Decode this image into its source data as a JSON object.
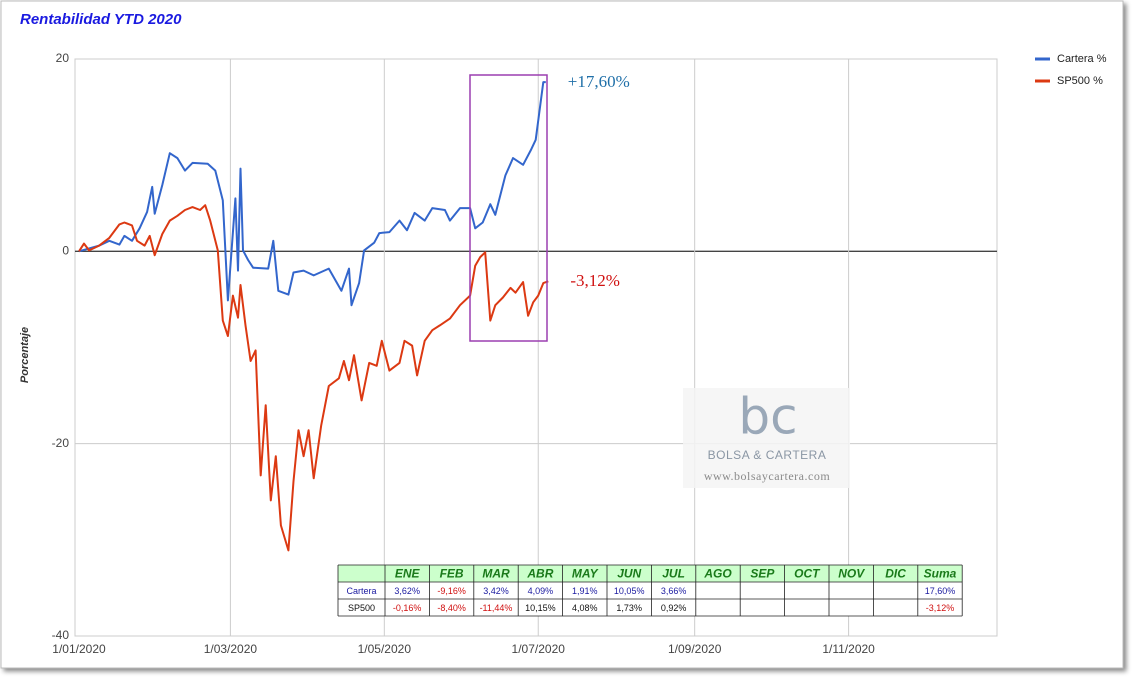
{
  "chart_data": {
    "type": "line",
    "title": "Rentabilidad YTD 2020",
    "ylabel": "Porcentaje",
    "xlim": [
      "1/01/2020",
      "31/12/2020"
    ],
    "xticks": [
      "1/01/2020",
      "1/03/2020",
      "1/05/2020",
      "1/07/2020",
      "1/09/2020",
      "1/11/2020"
    ],
    "ylim": [
      -40,
      20
    ],
    "yticks": [
      -40,
      -20,
      0,
      20
    ],
    "grid": true,
    "legend": "right",
    "series": [
      {
        "name": "Cartera %",
        "color": "#3366cc",
        "x": [
          "1/01/2020",
          "5/01/2020",
          "9/01/2020",
          "13/01/2020",
          "17/01/2020",
          "19/01/2020",
          "22/01/2020",
          "25/01/2020",
          "28/01/2020",
          "30/01/2020",
          "31/01/2020",
          "3/02/2020",
          "6/02/2020",
          "9/02/2020",
          "12/02/2020",
          "15/02/2020",
          "21/02/2020",
          "24/02/2020",
          "27/02/2020",
          "29/02/2020",
          "3/03/2020",
          "4/03/2020",
          "5/03/2020",
          "6/03/2020",
          "8/03/2020",
          "10/03/2020",
          "16/03/2020",
          "18/03/2020",
          "20/03/2020",
          "24/03/2020",
          "26/03/2020",
          "30/03/2020",
          "3/04/2020",
          "9/04/2020",
          "14/04/2020",
          "17/04/2020",
          "18/04/2020",
          "21/04/2020",
          "23/04/2020",
          "27/04/2020",
          "29/04/2020",
          "3/05/2020",
          "7/05/2020",
          "10/05/2020",
          "13/05/2020",
          "17/05/2020",
          "20/05/2020",
          "25/05/2020",
          "27/05/2020",
          "31/05/2020",
          "4/06/2020",
          "6/06/2020",
          "9/06/2020",
          "12/06/2020",
          "14/06/2020",
          "18/06/2020",
          "21/06/2020",
          "25/06/2020",
          "28/06/2020",
          "30/06/2020",
          "3/07/2020",
          "4/07/2020"
        ],
        "values": [
          0,
          0.3,
          0.6,
          1.1,
          0.7,
          1.6,
          1.1,
          2.4,
          4.1,
          6.7,
          3.9,
          6.9,
          10.2,
          9.7,
          8.4,
          9.2,
          9.1,
          8.4,
          5.3,
          -5.1,
          5.5,
          -2.0,
          8.6,
          0.1,
          -0.9,
          -1.7,
          -1.8,
          1.1,
          -4.1,
          -4.5,
          -2.2,
          -2.0,
          -2.5,
          -1.8,
          -4.1,
          -1.8,
          -5.6,
          -3.3,
          0.1,
          0.9,
          1.9,
          2.0,
          3.2,
          2.2,
          4.0,
          3.2,
          4.5,
          4.3,
          3.2,
          4.5,
          4.5,
          2.4,
          3.0,
          4.9,
          3.8,
          7.9,
          9.7,
          9.0,
          10.5,
          11.6,
          17.6,
          17.6
        ]
      },
      {
        "name": "SP500 %",
        "color": "#dc3912",
        "x": [
          "1/01/2020",
          "3/01/2020",
          "5/01/2020",
          "9/01/2020",
          "13/01/2020",
          "17/01/2020",
          "19/01/2020",
          "22/01/2020",
          "24/01/2020",
          "27/01/2020",
          "29/01/2020",
          "31/01/2020",
          "3/02/2020",
          "6/02/2020",
          "9/02/2020",
          "12/02/2020",
          "15/02/2020",
          "18/02/2020",
          "20/02/2020",
          "22/02/2020",
          "25/02/2020",
          "27/02/2020",
          "29/02/2020",
          "2/03/2020",
          "4/03/2020",
          "5/03/2020",
          "7/03/2020",
          "9/03/2020",
          "11/03/2020",
          "13/03/2020",
          "15/03/2020",
          "17/03/2020",
          "19/03/2020",
          "21/03/2020",
          "24/03/2020",
          "26/03/2020",
          "28/03/2020",
          "30/03/2020",
          "1/04/2020",
          "3/04/2020",
          "6/04/2020",
          "9/04/2020",
          "13/04/2020",
          "15/04/2020",
          "17/04/2020",
          "19/04/2020",
          "22/04/2020",
          "25/04/2020",
          "28/04/2020",
          "30/04/2020",
          "3/05/2020",
          "7/05/2020",
          "9/05/2020",
          "12/05/2020",
          "14/05/2020",
          "17/05/2020",
          "20/05/2020",
          "23/05/2020",
          "27/05/2020",
          "31/05/2020",
          "4/06/2020",
          "6/06/2020",
          "8/06/2020",
          "10/06/2020",
          "12/06/2020",
          "14/06/2020",
          "17/06/2020",
          "20/06/2020",
          "22/06/2020",
          "25/06/2020",
          "27/06/2020",
          "29/06/2020",
          "1/07/2020",
          "3/07/2020",
          "5/07/2020"
        ],
        "values": [
          0,
          0.8,
          0.1,
          0.6,
          1.4,
          2.8,
          3.0,
          2.7,
          1.1,
          0.6,
          1.6,
          -0.4,
          1.8,
          3.2,
          3.7,
          4.3,
          4.6,
          4.3,
          4.8,
          3.2,
          0.1,
          -7.2,
          -8.8,
          -4.6,
          -6.9,
          -3.5,
          -7.7,
          -11.4,
          -10.3,
          -23.3,
          -16.0,
          -25.9,
          -21.3,
          -28.5,
          -31.1,
          -23.9,
          -18.6,
          -21.3,
          -18.6,
          -23.6,
          -18.1,
          -14.0,
          -13.2,
          -11.4,
          -13.4,
          -10.8,
          -15.5,
          -11.6,
          -11.9,
          -9.3,
          -12.4,
          -11.6,
          -9.3,
          -9.8,
          -12.9,
          -9.3,
          -8.2,
          -7.7,
          -7.0,
          -5.6,
          -4.6,
          -1.5,
          -0.6,
          -0.1,
          -7.2,
          -5.6,
          -4.8,
          -3.8,
          -4.3,
          -3.2,
          -6.7,
          -5.3,
          -4.6,
          -3.3,
          -3.12
        ]
      }
    ],
    "annotations": [
      {
        "text": "+17,60%",
        "color": "#1f6fa8"
      },
      {
        "text": "-3,12%",
        "color": "#d01010"
      }
    ]
  },
  "table": {
    "columns": [
      "ENE",
      "FEB",
      "MAR",
      "ABR",
      "MAY",
      "JUN",
      "JUL",
      "AGO",
      "SEP",
      "OCT",
      "NOV",
      "DIC",
      "Suma"
    ],
    "rows": [
      {
        "label": "Cartera",
        "color": "#1a1aa0",
        "cells": [
          "3,62%",
          "-9,16%",
          "3,42%",
          "4,09%",
          "1,91%",
          "10,05%",
          "3,66%",
          null,
          null,
          null,
          null,
          null,
          "17,60%"
        ]
      },
      {
        "label": "SP500",
        "color": "#111111",
        "cells": [
          "-0,16%",
          "-8,40%",
          "-11,44%",
          "10,15%",
          "4,08%",
          "1,73%",
          "0,92%",
          null,
          null,
          null,
          null,
          null,
          "-3,12%"
        ]
      }
    ]
  },
  "watermark": {
    "logo": "bc",
    "name": "BOLSA & CARTERA",
    "url": "www.bolsaycartera.com"
  }
}
